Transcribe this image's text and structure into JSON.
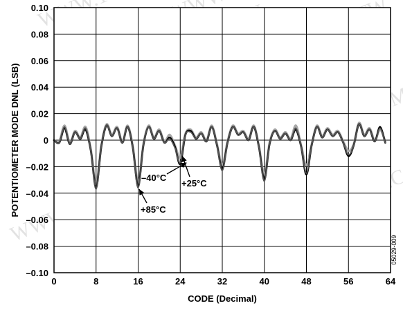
{
  "chart_data": {
    "type": "line",
    "title": "",
    "xlabel": "CODE (Decimal)",
    "ylabel": "POTENTIOMETER MODE DNL (LSB)",
    "xlim": [
      0,
      64
    ],
    "ylim": [
      -0.1,
      0.1
    ],
    "x_ticks": [
      0,
      8,
      16,
      24,
      32,
      40,
      48,
      56,
      64
    ],
    "y_ticks": [
      0.1,
      0.08,
      0.06,
      0.04,
      0.02,
      0,
      -0.02,
      -0.04,
      -0.06,
      -0.08,
      -0.1
    ],
    "x_tick_labels": [
      "0",
      "8",
      "16",
      "24",
      "32",
      "40",
      "48",
      "56",
      "64"
    ],
    "y_tick_labels": [
      "0.10",
      "0.08",
      "0.06",
      "0.04",
      "0.02",
      "0",
      "–0.02",
      "–0.04",
      "–0.06",
      "–0.08",
      "–0.10"
    ],
    "grid": true,
    "series": [
      {
        "name": "–40°C",
        "color": "#000000",
        "x": [
          0,
          1,
          2,
          3,
          4,
          5,
          6,
          7,
          8,
          9,
          10,
          11,
          12,
          13,
          14,
          15,
          16,
          17,
          18,
          19,
          20,
          21,
          22,
          23,
          24,
          25,
          26,
          27,
          28,
          29,
          30,
          31,
          32,
          33,
          34,
          35,
          36,
          37,
          38,
          39,
          40,
          41,
          42,
          43,
          44,
          45,
          46,
          47,
          48,
          49,
          50,
          51,
          52,
          53,
          54,
          55,
          56,
          57,
          58,
          59,
          60,
          61,
          62,
          63
        ],
        "values": [
          0,
          -0.002,
          0.009,
          -0.003,
          0.006,
          0.001,
          0.008,
          -0.008,
          -0.036,
          -0.005,
          0.011,
          0.003,
          0.009,
          -0.002,
          0.01,
          -0.006,
          -0.035,
          -0.004,
          0.01,
          0.001,
          0.007,
          -0.002,
          0.002,
          -0.005,
          -0.018,
          0.004,
          0.007,
          0.001,
          0.005,
          -0.001,
          0.01,
          -0.004,
          -0.022,
          -0.002,
          0.01,
          0.004,
          0.006,
          0,
          0.01,
          -0.006,
          -0.03,
          -0.003,
          0.007,
          0.001,
          0.005,
          0,
          0.008,
          -0.005,
          -0.026,
          -0.004,
          0.01,
          0.002,
          0.008,
          0.003,
          0.006,
          -0.002,
          -0.012,
          -0.004,
          0.012,
          0.003,
          0.008,
          -0.001,
          0.01,
          -0.002
        ]
      },
      {
        "name": "+25°C",
        "color": "#555555",
        "x": [
          0,
          1,
          2,
          3,
          4,
          5,
          6,
          7,
          8,
          9,
          10,
          11,
          12,
          13,
          14,
          15,
          16,
          17,
          18,
          19,
          20,
          21,
          22,
          23,
          24,
          25,
          26,
          27,
          28,
          29,
          30,
          31,
          32,
          33,
          34,
          35,
          36,
          37,
          38,
          39,
          40,
          41,
          42,
          43,
          44,
          45,
          46,
          47,
          48,
          49,
          50,
          51,
          52,
          53,
          54,
          55,
          56,
          57,
          58,
          59,
          60,
          61,
          62,
          63
        ],
        "values": [
          0,
          -0.002,
          0.01,
          -0.003,
          0.006,
          0.001,
          0.009,
          -0.008,
          -0.037,
          -0.005,
          0.011,
          0.003,
          0.009,
          -0.002,
          0.01,
          -0.006,
          -0.036,
          -0.004,
          0.01,
          0.001,
          0.007,
          -0.002,
          0.001,
          -0.006,
          -0.017,
          0.004,
          0.006,
          0.001,
          0.005,
          -0.001,
          0.01,
          -0.004,
          -0.023,
          -0.002,
          0.01,
          0.004,
          0.006,
          0,
          0.01,
          -0.006,
          -0.031,
          -0.003,
          0.007,
          0.001,
          0.005,
          0,
          0.009,
          -0.005,
          -0.025,
          -0.004,
          0.01,
          0.002,
          0.008,
          0.003,
          0.006,
          -0.002,
          -0.011,
          -0.004,
          0.012,
          0.003,
          0.008,
          -0.001,
          0.009,
          -0.002
        ]
      },
      {
        "name": "+85°C",
        "color": "#a8a8a8",
        "x": [
          0,
          1,
          2,
          3,
          4,
          5,
          6,
          7,
          8,
          9,
          10,
          11,
          12,
          13,
          14,
          15,
          16,
          17,
          18,
          19,
          20,
          21,
          22,
          23,
          24,
          25,
          26,
          27,
          28,
          29,
          30,
          31,
          32,
          33,
          34,
          35,
          36,
          37,
          38,
          39,
          40,
          41,
          42,
          43,
          44,
          45,
          46,
          47,
          48,
          49,
          50,
          51,
          52,
          53,
          54,
          55,
          56,
          57,
          58,
          59,
          60,
          61,
          62,
          63
        ],
        "values": [
          0,
          -0.001,
          0.011,
          -0.002,
          0.007,
          0.002,
          0.01,
          -0.007,
          -0.033,
          -0.004,
          0.012,
          0.004,
          0.01,
          -0.001,
          0.011,
          -0.005,
          -0.032,
          -0.003,
          0.011,
          0.002,
          0.008,
          -0.001,
          0.004,
          -0.004,
          -0.013,
          0.005,
          0.008,
          0.002,
          0.006,
          0,
          0.011,
          -0.003,
          -0.019,
          -0.001,
          0.011,
          0.005,
          0.007,
          0.001,
          0.011,
          -0.005,
          -0.026,
          -0.002,
          0.008,
          0.002,
          0.006,
          0.001,
          0.011,
          -0.004,
          -0.019,
          -0.003,
          0.011,
          0.003,
          0.009,
          0.004,
          0.007,
          -0.001,
          -0.008,
          -0.003,
          0.013,
          0.004,
          0.009,
          0,
          0.008,
          -0.001
        ]
      }
    ],
    "annotations": [
      {
        "text": "–40°C",
        "x": 25.2,
        "y": -0.017
      },
      {
        "text": "+25°C",
        "x": 24.4,
        "y": -0.012
      },
      {
        "text": "+85°C",
        "x": 16.2,
        "y": -0.037
      }
    ],
    "figure_id": "05029-009",
    "watermark": "WWW.100Y.COM.TW"
  }
}
